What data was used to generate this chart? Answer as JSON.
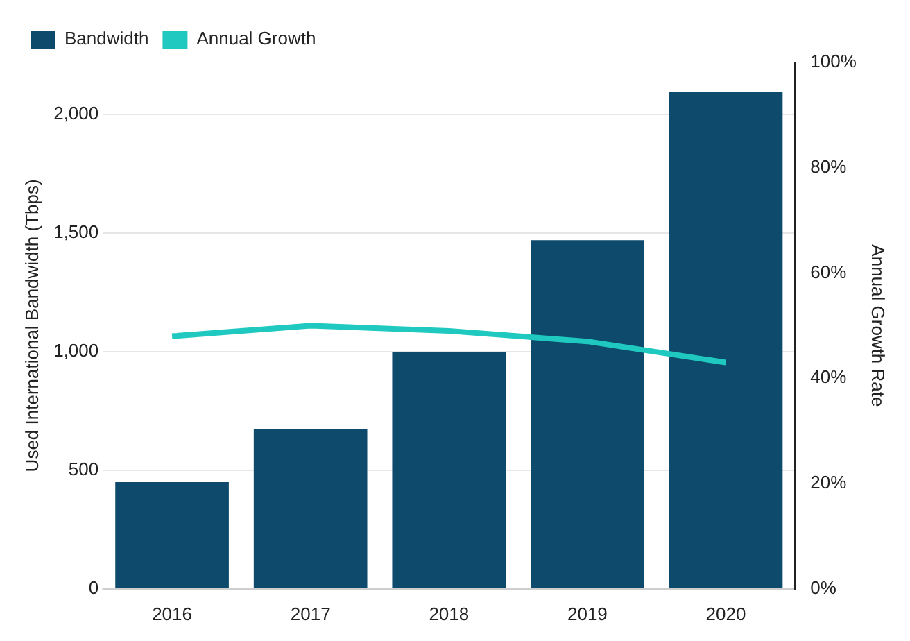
{
  "chart_data": {
    "type": "bar",
    "categories": [
      "2016",
      "2017",
      "2018",
      "2019",
      "2020"
    ],
    "series": [
      {
        "name": "Bandwidth",
        "color": "#0d4a6b",
        "values": [
          450,
          675,
          1000,
          1470,
          2095
        ]
      },
      {
        "name": "Annual Growth",
        "type": "line",
        "axis": "y2",
        "color": "#1fc9c0",
        "values": [
          48,
          50,
          49,
          47,
          43
        ],
        "marker": "none"
      }
    ],
    "ylabel": "Used International Bandwidth (Tbps)",
    "y2label": "Annual Growth Rate",
    "ylim": [
      0,
      2220
    ],
    "yticks": [
      0,
      {
        "value": 500,
        "label": "500"
      },
      {
        "value": 1000,
        "label": "1,000"
      },
      {
        "value": 1500,
        "label": "1,500"
      },
      {
        "value": 2000,
        "label": "2,000"
      }
    ],
    "y2lim": [
      0,
      100
    ],
    "y2ticks": [
      {
        "value": 0,
        "label": "0%"
      },
      {
        "value": 20,
        "label": "20%"
      },
      {
        "value": 40,
        "label": "40%"
      },
      {
        "value": 60,
        "label": "60%"
      },
      {
        "value": 80,
        "label": "80%"
      },
      {
        "value": 100,
        "label": "100%"
      }
    ],
    "grid": "y",
    "legend": "top left"
  }
}
